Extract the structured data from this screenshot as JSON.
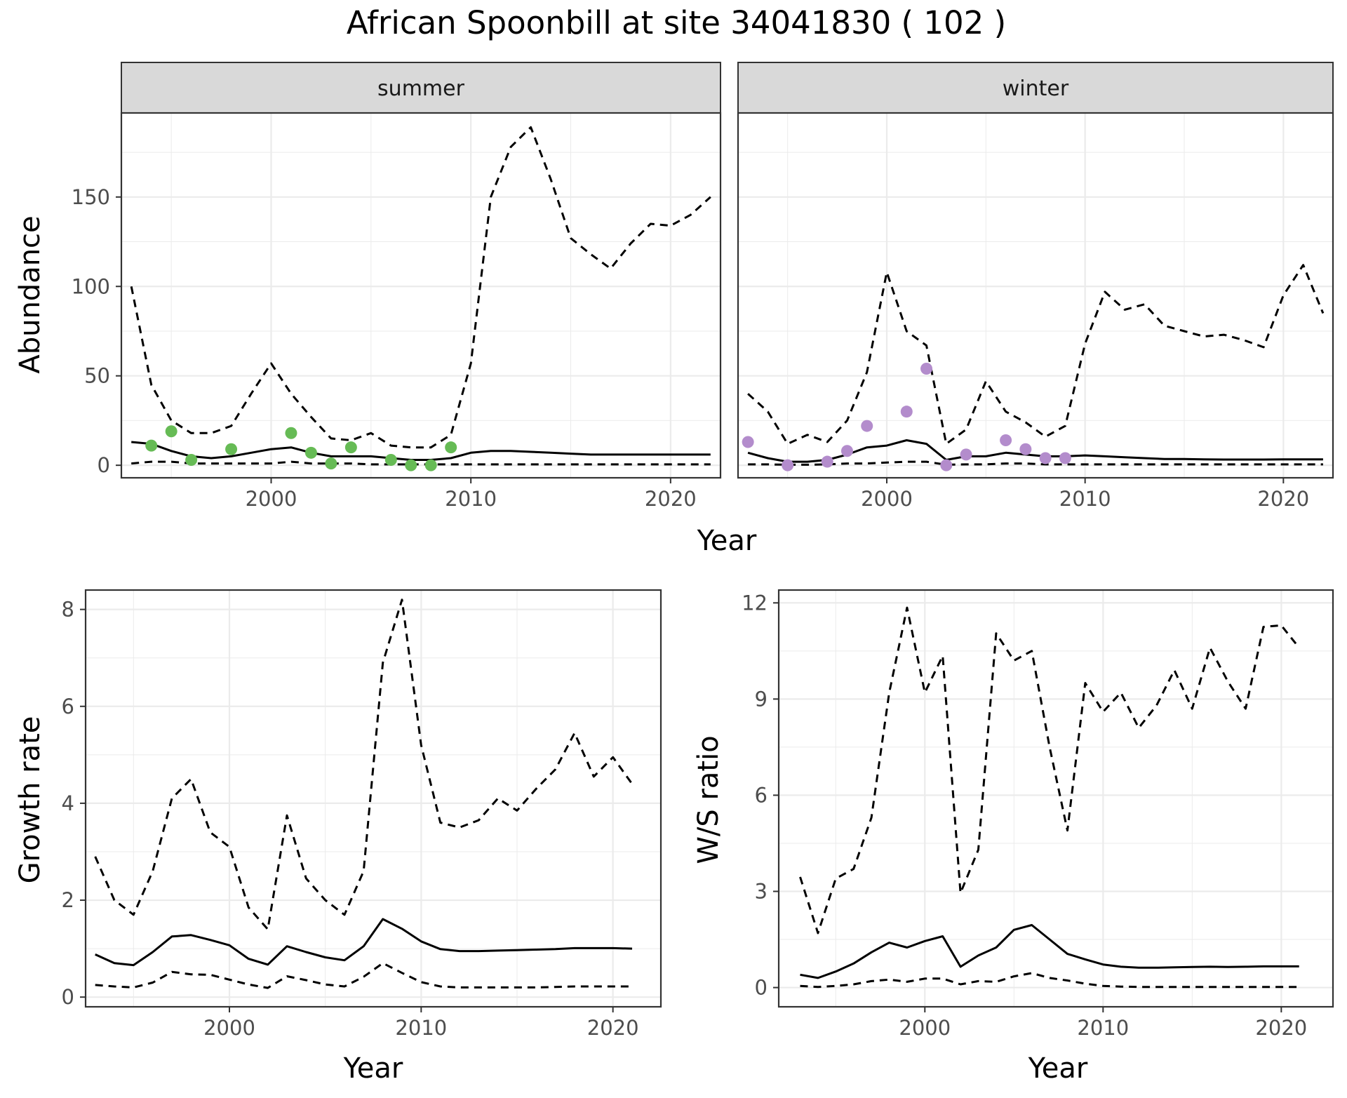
{
  "chart_data": {
    "type": "line",
    "title": "African Spoonbill at site 34041830 ( 102 )",
    "colors": {
      "summer_points": "#66bb55",
      "winter_points": "#b38ccc",
      "lines": "#000000",
      "strip_bg": "#d9d9d9",
      "grid": "#ebebeb"
    },
    "shared_xlabel": "Year",
    "panels": [
      {
        "id": "summer",
        "strip": "summer",
        "ylabel": "Abundance",
        "xlim": [
          1992.5,
          2022.5
        ],
        "ylim": [
          -7,
          197
        ],
        "xticks": [
          2000,
          2010,
          2020
        ],
        "yticks": [
          0,
          50,
          100,
          150
        ],
        "grid": true,
        "series": [
          {
            "style": "solid",
            "x": [
              1993,
              1994,
              1995,
              1996,
              1997,
              1998,
              1999,
              2000,
              2001,
              2002,
              2003,
              2004,
              2005,
              2006,
              2007,
              2008,
              2009,
              2010,
              2011,
              2012,
              2013,
              2014,
              2015,
              2016,
              2017,
              2018,
              2019,
              2020,
              2021,
              2022
            ],
            "values": [
              13,
              12,
              8,
              5,
              4,
              5,
              7,
              9,
              10,
              7,
              5,
              5,
              5,
              4,
              3,
              3,
              4,
              7,
              8,
              8,
              7.5,
              7,
              6.5,
              6,
              6,
              6,
              6,
              6,
              6,
              6
            ]
          },
          {
            "style": "dashed",
            "x": [
              1993,
              1994,
              1995,
              1996,
              1997,
              1998,
              1999,
              2000,
              2001,
              2002,
              2003,
              2004,
              2005,
              2006,
              2007,
              2008,
              2009,
              2010,
              2011,
              2012,
              2013,
              2014,
              2015,
              2016,
              2017,
              2018,
              2019,
              2020,
              2021,
              2022
            ],
            "values": [
              100,
              45,
              25,
              18,
              18,
              22,
              40,
              57,
              40,
              27,
              15,
              14,
              18,
              11,
              10,
              10,
              17,
              57,
              150,
              178,
              189,
              160,
              127,
              118,
              110,
              124,
              135,
              134,
              140,
              150
            ]
          },
          {
            "style": "dashed",
            "x": [
              1993,
              1994,
              1995,
              1996,
              1997,
              1998,
              1999,
              2000,
              2001,
              2002,
              2003,
              2004,
              2005,
              2006,
              2007,
              2008,
              2009,
              2010,
              2011,
              2012,
              2013,
              2014,
              2015,
              2016,
              2017,
              2018,
              2019,
              2020,
              2021,
              2022
            ],
            "values": [
              1,
              2,
              2,
              1,
              1,
              1,
              1,
              1,
              2,
              1,
              1,
              1,
              0.5,
              0.5,
              0.5,
              0.5,
              0.5,
              0.5,
              0.5,
              0.5,
              0.5,
              0.5,
              0.5,
              0.5,
              0.5,
              0.5,
              0.5,
              0.5,
              0.5,
              0.5
            ]
          },
          {
            "style": "points",
            "color": "#66bb55",
            "x": [
              1994,
              1995,
              1996,
              1998,
              2001,
              2002,
              2003,
              2004,
              2006,
              2007,
              2008,
              2009
            ],
            "values": [
              11,
              19,
              3,
              9,
              18,
              7,
              1,
              10,
              3,
              0,
              0,
              10
            ]
          }
        ]
      },
      {
        "id": "winter",
        "strip": "winter",
        "ylabel": "",
        "xlim": [
          1992.5,
          2022.5
        ],
        "ylim": [
          -7,
          197
        ],
        "xticks": [
          2000,
          2010,
          2020
        ],
        "yticks": [],
        "grid": true,
        "series": [
          {
            "style": "solid",
            "x": [
              1993,
              1994,
              1995,
              1996,
              1997,
              1998,
              1999,
              2000,
              2001,
              2002,
              2003,
              2004,
              2005,
              2006,
              2007,
              2008,
              2009,
              2010,
              2011,
              2012,
              2013,
              2014,
              2015,
              2016,
              2017,
              2018,
              2019,
              2020,
              2021,
              2022
            ],
            "values": [
              7,
              4,
              2,
              2,
              3,
              6,
              10,
              11,
              14,
              12,
              3,
              5,
              5,
              7,
              6,
              5,
              5,
              5.5,
              5,
              4.5,
              4,
              3.5,
              3.5,
              3.3,
              3.2,
              3.2,
              3.2,
              3.3,
              3.3,
              3.3
            ]
          },
          {
            "style": "dashed",
            "x": [
              1993,
              1994,
              1995,
              1996,
              1997,
              1998,
              1999,
              2000,
              2001,
              2002,
              2003,
              2004,
              2005,
              2006,
              2007,
              2008,
              2009,
              2010,
              2011,
              2012,
              2013,
              2014,
              2015,
              2016,
              2017,
              2018,
              2019,
              2020,
              2021,
              2022
            ],
            "values": [
              40,
              30,
              12,
              17,
              13,
              25,
              52,
              108,
              75,
              67,
              12,
              20,
              47,
              30,
              24,
              16,
              22,
              68,
              97,
              87,
              90,
              78,
              75,
              72,
              73,
              70,
              66,
              95,
              112,
              85
            ]
          },
          {
            "style": "dashed",
            "x": [
              1993,
              1994,
              1995,
              1996,
              1997,
              1998,
              1999,
              2000,
              2001,
              2002,
              2003,
              2004,
              2005,
              2006,
              2007,
              2008,
              2009,
              2010,
              2011,
              2012,
              2013,
              2014,
              2015,
              2016,
              2017,
              2018,
              2019,
              2020,
              2021,
              2022
            ],
            "values": [
              0.5,
              0.5,
              0.3,
              0.3,
              0.5,
              1,
              1,
              1.5,
              2,
              2,
              0.3,
              0.5,
              0.5,
              1,
              1,
              0.5,
              0.5,
              0.5,
              0.5,
              0.5,
              0.5,
              0.5,
              0.5,
              0.5,
              0.5,
              0.5,
              0.5,
              0.5,
              0.5,
              0.5
            ]
          },
          {
            "style": "points",
            "color": "#b38ccc",
            "x": [
              1993,
              1995,
              1997,
              1998,
              1999,
              2001,
              2002,
              2003,
              2004,
              2006,
              2007,
              2008,
              2009
            ],
            "values": [
              13,
              0,
              2,
              8,
              22,
              30,
              54,
              0,
              6,
              14,
              9,
              4,
              4
            ]
          }
        ]
      },
      {
        "id": "growth",
        "strip": "",
        "ylabel": "Growth rate",
        "xlabel": "Year",
        "xlim": [
          1992.5,
          2022.5
        ],
        "ylim": [
          -0.2,
          8.4
        ],
        "xticks": [
          2000,
          2010,
          2020
        ],
        "yticks": [
          0,
          2,
          4,
          6,
          8
        ],
        "grid": true,
        "series": [
          {
            "style": "solid",
            "x": [
              1993,
              1994,
              1995,
              1996,
              1997,
              1998,
              1999,
              2000,
              2001,
              2002,
              2003,
              2004,
              2005,
              2006,
              2007,
              2008,
              2009,
              2010,
              2011,
              2012,
              2013,
              2014,
              2015,
              2016,
              2017,
              2018,
              2019,
              2020,
              2021
            ],
            "values": [
              0.88,
              0.7,
              0.66,
              0.93,
              1.25,
              1.28,
              1.18,
              1.07,
              0.79,
              0.67,
              1.05,
              0.93,
              0.82,
              0.76,
              1.05,
              1.61,
              1.41,
              1.15,
              0.99,
              0.95,
              0.95,
              0.96,
              0.97,
              0.98,
              0.99,
              1.01,
              1.01,
              1.01,
              1.0
            ]
          },
          {
            "style": "dashed",
            "x": [
              1993,
              1994,
              1995,
              1996,
              1997,
              1998,
              1999,
              2000,
              2001,
              2002,
              2003,
              2004,
              2005,
              2006,
              2007,
              2008,
              2009,
              2010,
              2011,
              2012,
              2013,
              2014,
              2015,
              2016,
              2017,
              2018,
              2019,
              2020,
              2021
            ],
            "values": [
              2.9,
              2.0,
              1.7,
              2.6,
              4.1,
              4.5,
              3.4,
              3.1,
              1.85,
              1.4,
              3.75,
              2.45,
              2.0,
              1.7,
              2.6,
              6.9,
              8.2,
              5.2,
              3.6,
              3.5,
              3.65,
              4.1,
              3.85,
              4.3,
              4.7,
              5.45,
              4.55,
              4.95,
              4.4
            ]
          },
          {
            "style": "dashed",
            "x": [
              1993,
              1994,
              1995,
              1996,
              1997,
              1998,
              1999,
              2000,
              2001,
              2002,
              2003,
              2004,
              2005,
              2006,
              2007,
              2008,
              2009,
              2010,
              2011,
              2012,
              2013,
              2014,
              2015,
              2016,
              2017,
              2018,
              2019,
              2020,
              2021
            ],
            "values": [
              0.25,
              0.22,
              0.2,
              0.3,
              0.52,
              0.47,
              0.46,
              0.36,
              0.26,
              0.19,
              0.43,
              0.35,
              0.26,
              0.22,
              0.42,
              0.7,
              0.5,
              0.31,
              0.22,
              0.2,
              0.2,
              0.2,
              0.2,
              0.2,
              0.21,
              0.22,
              0.22,
              0.22,
              0.22
            ]
          }
        ]
      },
      {
        "id": "ws_ratio",
        "strip": "",
        "ylabel": "W/S ratio",
        "xlabel": "Year",
        "xlim": [
          1991.8,
          2022.9
        ],
        "ylim": [
          -0.6,
          12.4
        ],
        "xticks": [
          2000,
          2010,
          2020
        ],
        "yticks": [
          0,
          3,
          6,
          9,
          12
        ],
        "grid": true,
        "series": [
          {
            "style": "solid",
            "x": [
              1993,
              1994,
              1995,
              1996,
              1997,
              1998,
              1999,
              2000,
              2001,
              2002,
              2003,
              2004,
              2005,
              2006,
              2007,
              2008,
              2009,
              2010,
              2011,
              2012,
              2013,
              2014,
              2015,
              2016,
              2017,
              2018,
              2019,
              2020,
              2021
            ],
            "values": [
              0.4,
              0.3,
              0.5,
              0.75,
              1.1,
              1.4,
              1.25,
              1.45,
              1.6,
              0.65,
              1.0,
              1.25,
              1.8,
              1.95,
              1.5,
              1.05,
              0.88,
              0.72,
              0.65,
              0.62,
              0.62,
              0.63,
              0.64,
              0.65,
              0.64,
              0.65,
              0.66,
              0.66,
              0.66
            ]
          },
          {
            "style": "dashed",
            "x": [
              1993,
              1994,
              1995,
              1996,
              1997,
              1998,
              1999,
              2000,
              2001,
              2002,
              2003,
              2004,
              2005,
              2006,
              2007,
              2008,
              2009,
              2010,
              2011,
              2012,
              2013,
              2014,
              2015,
              2016,
              2017,
              2018,
              2019,
              2020,
              2021
            ],
            "values": [
              3.45,
              1.7,
              3.4,
              3.7,
              5.3,
              9.2,
              11.85,
              9.2,
              10.35,
              2.95,
              4.3,
              11.05,
              10.2,
              10.5,
              7.5,
              4.9,
              9.5,
              8.6,
              9.2,
              8.1,
              8.8,
              9.9,
              8.7,
              10.6,
              9.55,
              8.7,
              11.25,
              11.3,
              10.6
            ]
          },
          {
            "style": "dashed",
            "x": [
              1993,
              1994,
              1995,
              1996,
              1997,
              1998,
              1999,
              2000,
              2001,
              2002,
              2003,
              2004,
              2005,
              2006,
              2007,
              2008,
              2009,
              2010,
              2011,
              2012,
              2013,
              2014,
              2015,
              2016,
              2017,
              2018,
              2019,
              2020,
              2021
            ],
            "values": [
              0.05,
              0.02,
              0.05,
              0.1,
              0.2,
              0.25,
              0.18,
              0.28,
              0.28,
              0.1,
              0.2,
              0.18,
              0.35,
              0.45,
              0.3,
              0.22,
              0.12,
              0.05,
              0.03,
              0.02,
              0.02,
              0.02,
              0.02,
              0.02,
              0.02,
              0.02,
              0.02,
              0.02,
              0.02
            ]
          }
        ]
      }
    ]
  }
}
